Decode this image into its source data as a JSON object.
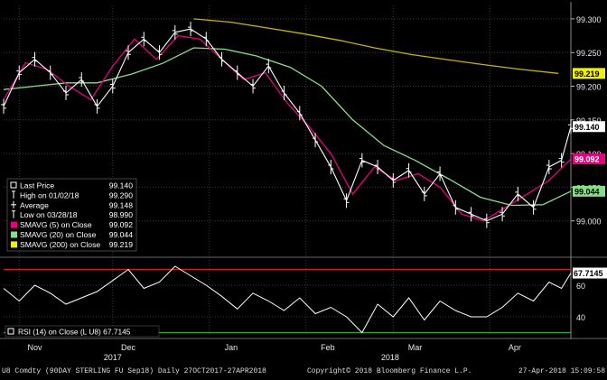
{
  "chart_data": [
    {
      "type": "line",
      "panel": "price",
      "x_range": [
        "2017-10-27",
        "2018-04-27"
      ],
      "ylim": [
        98.95,
        99.32
      ],
      "y_ticks": [
        "99.300",
        "99.250",
        "99.200",
        "99.150",
        "99.100",
        "99.050",
        "99.000"
      ],
      "grid": true,
      "legend_position": "lower-left",
      "legend": [
        {
          "label": "Last Price",
          "value": "99.140",
          "icon": "box",
          "color": "#ffffff"
        },
        {
          "label": "High on 01/02/18",
          "value": "99.290",
          "icon": "tbar",
          "color": "#ffffff"
        },
        {
          "label": "Average",
          "value": "99.148",
          "icon": "plus",
          "color": "#ffffff"
        },
        {
          "label": "Low on 03/28/18",
          "value": "98.990",
          "icon": "tbar",
          "color": "#ffffff"
        },
        {
          "label": "SMAVG (5) on Close",
          "value": "99.092",
          "icon": "swatch",
          "color": "#e6007e"
        },
        {
          "label": "SMAVG (20) on Close",
          "value": "99.044",
          "icon": "swatch",
          "color": "#88dd88"
        },
        {
          "label": "SMAVG (200) on Close",
          "value": "99.219",
          "icon": "swatch",
          "color": "#f0f000"
        }
      ],
      "tags": [
        {
          "value": 99.219,
          "text": "99.219",
          "bg": "#f0f000",
          "fg": "#000000"
        },
        {
          "value": 99.14,
          "text": "99.140",
          "bg": "#ffffff",
          "fg": "#000000"
        },
        {
          "value": 99.092,
          "text": "99.092",
          "bg": "#e6007e",
          "fg": "#ffffff"
        },
        {
          "value": 99.044,
          "text": "99.044",
          "bg": "#88dd88",
          "fg": "#000000"
        }
      ],
      "series": [
        {
          "name": "SMAVG (200) on Close",
          "color": "#c8b400",
          "x": [
            "2017-12-27",
            "2018-01-08",
            "2018-01-19",
            "2018-01-31",
            "2018-02-12",
            "2018-02-23",
            "2018-03-07",
            "2018-03-19",
            "2018-03-30",
            "2018-04-11",
            "2018-04-23"
          ],
          "values": [
            99.3,
            99.295,
            99.287,
            99.278,
            99.268,
            99.257,
            99.247,
            99.239,
            99.232,
            99.225,
            99.219
          ]
        },
        {
          "name": "SMAVG (20) on Close",
          "color": "#88dd88",
          "x": [
            "2017-10-27",
            "2017-11-06",
            "2017-11-16",
            "2017-11-26",
            "2017-12-07",
            "2017-12-17",
            "2017-12-27",
            "2018-01-06",
            "2018-01-16",
            "2018-01-27",
            "2018-02-06",
            "2018-02-16",
            "2018-02-26",
            "2018-03-08",
            "2018-03-19",
            "2018-03-29",
            "2018-04-08",
            "2018-04-18",
            "2018-04-27"
          ],
          "values": [
            99.195,
            99.2,
            99.205,
            99.205,
            99.218,
            99.234,
            99.257,
            99.255,
            99.245,
            99.228,
            99.2,
            99.15,
            99.112,
            99.09,
            99.062,
            99.035,
            99.023,
            99.024,
            99.044
          ]
        },
        {
          "name": "SMAVG (5) on Close",
          "color": "#e6007e",
          "x": [
            "2017-10-27",
            "2017-11-03",
            "2017-11-10",
            "2017-11-17",
            "2017-11-24",
            "2017-12-01",
            "2017-12-08",
            "2017-12-15",
            "2017-12-22",
            "2017-12-29",
            "2018-01-05",
            "2018-01-12",
            "2018-01-19",
            "2018-01-26",
            "2018-02-02",
            "2018-02-09",
            "2018-02-16",
            "2018-02-23",
            "2018-03-02",
            "2018-03-09",
            "2018-03-16",
            "2018-03-23",
            "2018-03-30",
            "2018-04-06",
            "2018-04-13",
            "2018-04-20",
            "2018-04-27"
          ],
          "values": [
            99.18,
            99.235,
            99.225,
            99.2,
            99.18,
            99.23,
            99.27,
            99.24,
            99.275,
            99.27,
            99.24,
            99.21,
            99.22,
            99.175,
            99.14,
            99.1,
            99.04,
            99.08,
            99.06,
            99.07,
            99.05,
            99.01,
            99.0,
            99.02,
            99.04,
            99.06,
            99.092
          ]
        },
        {
          "name": "Last Price",
          "color": "#ffffff",
          "x": [
            "2017-10-27",
            "2017-11-01",
            "2017-11-06",
            "2017-11-11",
            "2017-11-16",
            "2017-11-21",
            "2017-11-26",
            "2017-12-01",
            "2017-12-06",
            "2017-12-11",
            "2017-12-16",
            "2017-12-21",
            "2017-12-26",
            "2017-12-31",
            "2018-01-05",
            "2018-01-10",
            "2018-01-15",
            "2018-01-20",
            "2018-01-25",
            "2018-01-30",
            "2018-02-04",
            "2018-02-09",
            "2018-02-14",
            "2018-02-19",
            "2018-02-24",
            "2018-03-01",
            "2018-03-06",
            "2018-03-11",
            "2018-03-16",
            "2018-03-21",
            "2018-03-26",
            "2018-03-31",
            "2018-04-05",
            "2018-04-10",
            "2018-04-15",
            "2018-04-20",
            "2018-04-24",
            "2018-04-27"
          ],
          "values": [
            99.17,
            99.22,
            99.24,
            99.22,
            99.19,
            99.21,
            99.17,
            99.2,
            99.25,
            99.27,
            99.25,
            99.28,
            99.285,
            99.27,
            99.24,
            99.22,
            99.2,
            99.23,
            99.19,
            99.16,
            99.12,
            99.08,
            99.03,
            99.09,
            99.08,
            99.06,
            99.075,
            99.04,
            99.07,
            99.02,
            99.01,
            99.0,
            99.01,
            99.04,
            99.02,
            99.08,
            99.09,
            99.14
          ]
        }
      ]
    },
    {
      "type": "line",
      "panel": "rsi",
      "ylim": [
        28,
        76
      ],
      "y_ticks": [
        "60",
        "40"
      ],
      "tag": "67.7145",
      "legend": "RSI (14) on Close (L U8) 67.7145",
      "overbought_level": 70,
      "oversold_level": 30,
      "series": [
        {
          "name": "RSI (14) on Close (L U8)",
          "color": "#ffffff",
          "x": [
            "2017-10-27",
            "2017-11-01",
            "2017-11-06",
            "2017-11-11",
            "2017-11-16",
            "2017-11-21",
            "2017-11-26",
            "2017-12-01",
            "2017-12-06",
            "2017-12-11",
            "2017-12-16",
            "2017-12-21",
            "2017-12-26",
            "2017-12-31",
            "2018-01-05",
            "2018-01-10",
            "2018-01-15",
            "2018-01-20",
            "2018-01-25",
            "2018-01-30",
            "2018-02-04",
            "2018-02-09",
            "2018-02-14",
            "2018-02-19",
            "2018-02-24",
            "2018-03-01",
            "2018-03-06",
            "2018-03-11",
            "2018-03-16",
            "2018-03-21",
            "2018-03-26",
            "2018-03-31",
            "2018-04-05",
            "2018-04-10",
            "2018-04-15",
            "2018-04-20",
            "2018-04-24",
            "2018-04-27"
          ],
          "values": [
            58,
            50,
            60,
            55,
            48,
            52,
            56,
            63,
            70,
            58,
            62,
            72,
            66,
            60,
            53,
            45,
            55,
            50,
            44,
            52,
            42,
            46,
            40,
            30,
            48,
            40,
            52,
            38,
            50,
            44,
            40,
            40,
            46,
            55,
            50,
            62,
            58,
            67.7
          ]
        }
      ]
    }
  ],
  "x_axis": {
    "month_labels": [
      {
        "date": "2017-11-06",
        "label": "Nov"
      },
      {
        "date": "2017-12-06",
        "label": "Dec"
      },
      {
        "date": "2018-01-08",
        "label": "Jan"
      },
      {
        "date": "2018-02-08",
        "label": "Feb"
      },
      {
        "date": "2018-03-08",
        "label": "Mar"
      },
      {
        "date": "2018-04-09",
        "label": "Apr"
      }
    ],
    "year_labels": [
      {
        "date": "2017-12-01",
        "label": "2017"
      },
      {
        "date": "2018-02-28",
        "label": "2018"
      }
    ],
    "month_boundaries": [
      "2017-11-01",
      "2017-12-01",
      "2018-01-01",
      "2018-02-01",
      "2018-03-01",
      "2018-04-01"
    ]
  },
  "footer": {
    "ticker": "U8 Comdty (90DAY STERLING FU Sep18) Daily 27OCT2017-27APR2018",
    "copyright": "Copyright© 2018 Bloomberg Finance L.P.",
    "timestamp": "27-Apr-2018 15:09:58"
  },
  "colors": {
    "background": "#000000",
    "grid": "#3a3a3a",
    "rsi_high_line": "#cc2222",
    "rsi_low_line": "#33aa33"
  }
}
